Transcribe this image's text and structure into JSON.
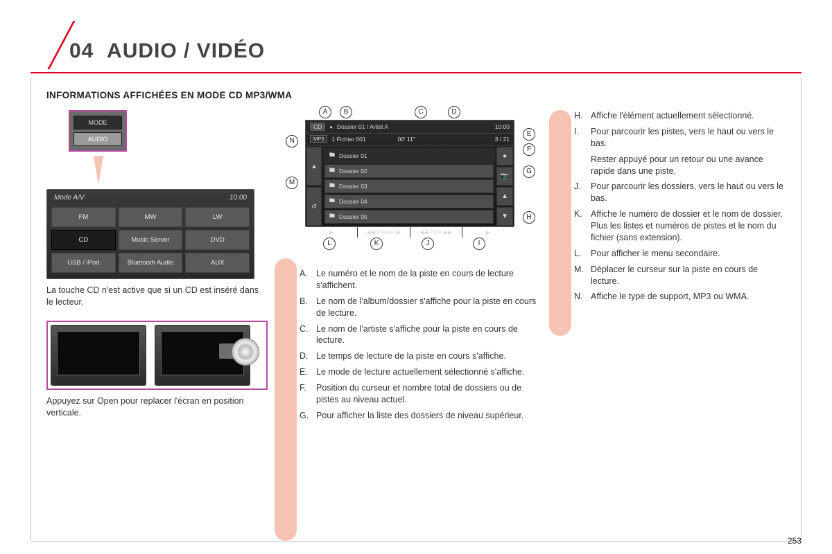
{
  "header": {
    "section_no": "04",
    "title": "AUDIO / VIDÉO"
  },
  "subheading": "INFORMATIONS AFFICHÉES EN MODE CD MP3/WMA",
  "page_number": "253",
  "colors": {
    "accent_red": "#e6001f",
    "salmon": "#f6c2b3",
    "highlight_border": "#b74a9d",
    "panel_dark": "#2a2a2a",
    "panel_btn": "#595959",
    "panel_btn_sel": "#1c1c1c",
    "text": "#333333"
  },
  "left_buttons": {
    "mode": "MODE",
    "audio": "AUDIO"
  },
  "av_panel": {
    "title": "Mode A/V",
    "clock": "10:00",
    "buttons": [
      "FM",
      "MW",
      "LW",
      "CD",
      "Music Server",
      "DVD",
      "USB / iPod",
      "Bluetooth Audio",
      "AUX"
    ],
    "selected_index": 3
  },
  "caption_cd": "La touche CD n'est active que si un CD est inséré dans le lecteur.",
  "caption_open": "Appuyez sur Open pour replacer l'écran en position verticale.",
  "cd_screen": {
    "badge": "CD",
    "mp3": "MP3",
    "header_path": "Dossier 01 / Artist  A",
    "clock": "10:00",
    "track_line": "1 Fichier 001",
    "elapsed": "00' 11\"",
    "counter": "3 / 21",
    "rows": [
      "Dossier 01",
      "Dossier 02",
      "Dossier 03",
      "Dossier 04",
      "Dossier 05"
    ],
    "selected_row": 0,
    "bottom": {
      "menu": "▶",
      "dossier": "◀◀  Dossier  ▶",
      "piste": "◀◀  Piste  ▶▶",
      "right": "▶"
    },
    "side_left_icons": [
      "▲",
      "↺"
    ],
    "side_right_icons": [
      "●",
      "📷",
      "▲",
      "▼"
    ]
  },
  "callouts": [
    "A",
    "B",
    "C",
    "D",
    "E",
    "F",
    "G",
    "H",
    "I",
    "J",
    "K",
    "L",
    "M",
    "N"
  ],
  "legend_mid": [
    {
      "k": "A.",
      "t": "Le numéro et le nom de la piste en cours de lecture s'affichent."
    },
    {
      "k": "B.",
      "t": "Le nom de l'album/dossier s'affiche pour la piste en cours de lecture."
    },
    {
      "k": "C.",
      "t": "Le nom de l'artiste s'affiche pour la piste en cours de lecture."
    },
    {
      "k": "D.",
      "t": "Le temps de lecture de la piste en cours s'affiche."
    },
    {
      "k": "E.",
      "t": "Le mode de lecture actuellement sélectionné s'affiche."
    },
    {
      "k": "F.",
      "t": "Position du curseur et nombre total de dossiers ou de pistes au niveau actuel."
    },
    {
      "k": "G.",
      "t": "Pour afficher la liste des dossiers de niveau supérieur."
    }
  ],
  "legend_right": [
    {
      "k": "H.",
      "t": "Affiche l'élément actuellement sélectionné."
    },
    {
      "k": "I.",
      "t": "Pour parcourir les pistes, vers le haut ou vers le bas."
    },
    {
      "k": "",
      "t": "Rester appuyé pour un retour ou une avance rapide dans une piste."
    },
    {
      "k": "J.",
      "t": "Pour parcourir les dossiers, vers le haut ou vers le bas."
    },
    {
      "k": "K.",
      "t": "Affiche le numéro de dossier et le nom de dossier. Plus les listes et numéros de pistes et le nom du fichier (sans extension)."
    },
    {
      "k": "L.",
      "t": "Pour afficher le menu secondaire."
    },
    {
      "k": "M.",
      "t": "Déplacer le curseur sur la piste en cours de lecture."
    },
    {
      "k": "N.",
      "t": "Affiche le type de support, MP3 ou WMA."
    }
  ]
}
